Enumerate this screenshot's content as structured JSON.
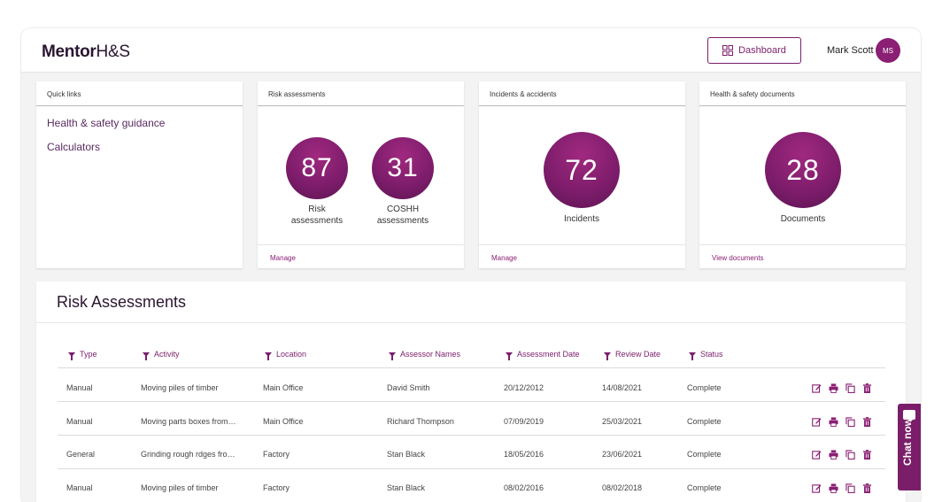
{
  "app": {
    "logo_bold": "Mentor",
    "logo_thin": "H&S"
  },
  "header": {
    "dashboard_label": "Dashboard",
    "user_name": "Mark Scott",
    "user_initials": "MS"
  },
  "quick_links": {
    "title": "Quick links",
    "items": [
      "Health & safety guidance",
      "Calculators"
    ]
  },
  "risk_card": {
    "title": "Risk assessments",
    "stats": [
      {
        "value": "87",
        "label_line1": "Risk",
        "label_line2": "assessments"
      },
      {
        "value": "31",
        "label_line1": "COSHH",
        "label_line2": "assessments"
      }
    ],
    "footer_link": "Manage"
  },
  "incidents_card": {
    "title": "Incidents & accidents",
    "value": "72",
    "label": "Incidents",
    "footer_link": "Manage"
  },
  "documents_card": {
    "title": "Health & safety documents",
    "value": "28",
    "label": "Documents",
    "footer_link": "View documents"
  },
  "risk_table": {
    "title": "Risk Assessments",
    "columns": [
      "Type",
      "Activity",
      "Location",
      "Assessor Names",
      "Assessment Date",
      "Review Date",
      "Status"
    ],
    "rows": [
      [
        "Manual",
        "Moving piles of timber",
        "Main Office",
        "David Smith",
        "20/12/2012",
        "14/08/2021",
        "Complete"
      ],
      [
        "Manual",
        "Moving parts boxes from…",
        "Main Office",
        "Richard Thompson",
        "07/09/2019",
        "25/03/2021",
        "Complete"
      ],
      [
        "General",
        "Grinding rough rdges fro…",
        "Factory",
        "Stan Black",
        "18/05/2016",
        "23/06/2021",
        "Complete"
      ],
      [
        "Manual",
        "Moving piles of timber",
        "Factory",
        "Stan Black",
        "08/02/2016",
        "08/02/2018",
        "Complete"
      ]
    ],
    "row_actions": [
      "edit-icon",
      "print-icon",
      "copy-icon",
      "delete-icon"
    ]
  },
  "chat": {
    "label": "Chat now"
  },
  "colors": {
    "brand": "#7a1e6a",
    "accent": "#8a1f73"
  }
}
